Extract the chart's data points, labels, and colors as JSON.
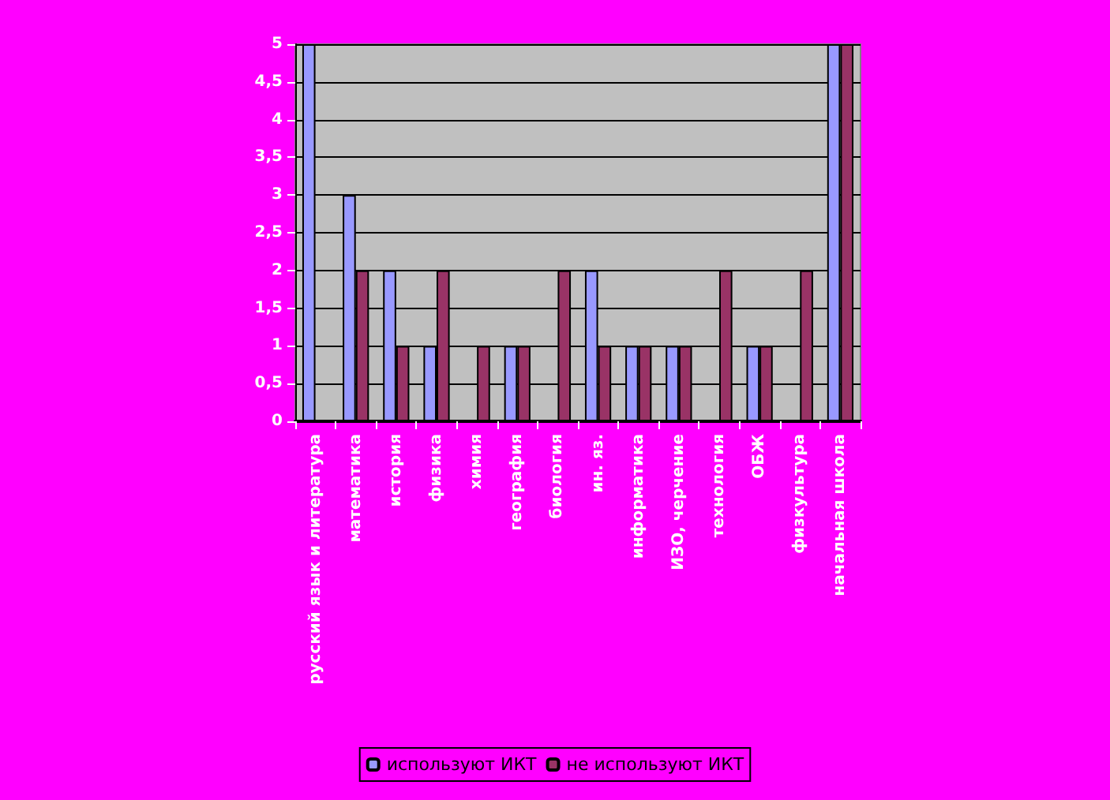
{
  "chart_data": {
    "type": "bar",
    "categories": [
      "русский язык и литература",
      "математика",
      "история",
      "физика",
      "химия",
      "география",
      "биология",
      "ин. яз.",
      "информатика",
      "ИЗО, черчение",
      "технология",
      "ОБЖ",
      "физкультура",
      "начальная школа"
    ],
    "series": [
      {
        "name": "используют ИКТ",
        "color": "#9999ff",
        "values": [
          5,
          3,
          2,
          1,
          0,
          1,
          0,
          2,
          1,
          1,
          0,
          1,
          0,
          5
        ]
      },
      {
        "name": "не используют ИКТ",
        "color": "#993366",
        "values": [
          0,
          2,
          1,
          2,
          1,
          1,
          2,
          1,
          1,
          1,
          2,
          1,
          2,
          5
        ]
      }
    ],
    "ylim": [
      0,
      5
    ],
    "yticks": [
      0,
      {
        "value": 0.5,
        "label": "0,5"
      },
      1,
      {
        "value": 1.5,
        "label": "1,5"
      },
      2,
      {
        "value": 2.5,
        "label": "2,5"
      },
      3,
      {
        "value": 3.5,
        "label": "3,5"
      },
      4,
      {
        "value": 4.5,
        "label": "4,5"
      },
      5
    ],
    "grid": "y",
    "legend": "bottom"
  }
}
